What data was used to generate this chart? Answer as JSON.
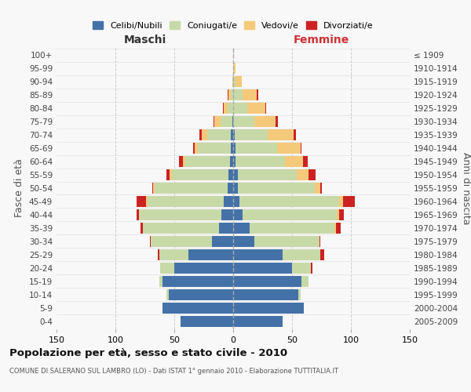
{
  "age_groups_bottom_to_top": [
    "0-4",
    "5-9",
    "10-14",
    "15-19",
    "20-24",
    "25-29",
    "30-34",
    "35-39",
    "40-44",
    "45-49",
    "50-54",
    "55-59",
    "60-64",
    "65-69",
    "70-74",
    "75-79",
    "80-84",
    "85-89",
    "90-94",
    "95-99",
    "100+"
  ],
  "birth_years_bottom_to_top": [
    "2005-2009",
    "2000-2004",
    "1995-1999",
    "1990-1994",
    "1985-1989",
    "1980-1984",
    "1975-1979",
    "1970-1974",
    "1965-1969",
    "1960-1964",
    "1955-1959",
    "1950-1954",
    "1945-1949",
    "1940-1944",
    "1935-1939",
    "1930-1934",
    "1925-1929",
    "1920-1924",
    "1915-1919",
    "1910-1914",
    "≤ 1909"
  ],
  "colors": {
    "celibi": "#4472a8",
    "coniugati": "#c8d9a8",
    "vedovi": "#f5c97a",
    "divorziati": "#cc2222"
  },
  "maschi_celibi": [
    45,
    60,
    55,
    60,
    50,
    38,
    18,
    12,
    10,
    8,
    5,
    4,
    3,
    2,
    2,
    1,
    0,
    0,
    0,
    0,
    0
  ],
  "maschi_coniugati": [
    0,
    0,
    2,
    3,
    12,
    25,
    52,
    65,
    70,
    65,
    62,
    48,
    38,
    28,
    20,
    10,
    5,
    2,
    0,
    0,
    0
  ],
  "maschi_vedovi": [
    0,
    0,
    0,
    0,
    0,
    0,
    0,
    0,
    0,
    1,
    1,
    2,
    2,
    3,
    5,
    5,
    3,
    2,
    1,
    0,
    0
  ],
  "maschi_divorziati": [
    0,
    0,
    0,
    0,
    0,
    1,
    1,
    2,
    2,
    8,
    1,
    3,
    3,
    1,
    2,
    1,
    1,
    1,
    0,
    0,
    0
  ],
  "femmine_celibi": [
    42,
    60,
    55,
    58,
    50,
    42,
    18,
    14,
    8,
    5,
    4,
    4,
    2,
    2,
    1,
    0,
    0,
    0,
    0,
    0,
    0
  ],
  "femmine_coniugati": [
    0,
    0,
    2,
    6,
    16,
    32,
    55,
    72,
    80,
    85,
    65,
    50,
    42,
    35,
    28,
    18,
    12,
    8,
    2,
    0,
    0
  ],
  "femmine_vedovi": [
    0,
    0,
    0,
    0,
    0,
    0,
    0,
    1,
    2,
    3,
    5,
    10,
    15,
    20,
    22,
    18,
    15,
    12,
    5,
    2,
    0
  ],
  "femmine_divorziati": [
    0,
    0,
    0,
    0,
    1,
    3,
    1,
    4,
    4,
    10,
    1,
    6,
    4,
    1,
    2,
    2,
    1,
    1,
    0,
    0,
    0
  ],
  "title": "Popolazione per età, sesso e stato civile - 2010",
  "subtitle": "COMUNE DI SALERANO SUL LAMBRO (LO) - Dati ISTAT 1° gennaio 2010 - Elaborazione TUTTITALIA.IT",
  "label_maschi": "Maschi",
  "label_femmine": "Femmine",
  "ylabel_left": "Fasce di età",
  "ylabel_right": "Anni di nascita",
  "xlim": 150,
  "bg_color": "#f8f8f8",
  "grid_color": "#cccccc",
  "legend_labels": [
    "Celibi/Nubili",
    "Coniugati/e",
    "Vedovi/e",
    "Divorziati/e"
  ]
}
